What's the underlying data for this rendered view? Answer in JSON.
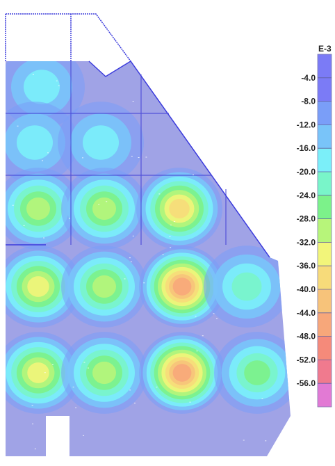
{
  "legend": {
    "unit": "E-3",
    "ticks": [
      "-4.0",
      "-8.0",
      "-12.0",
      "-16.0",
      "-20.0",
      "-24.0",
      "-28.0",
      "-32.0",
      "-36.0",
      "-40.0",
      "-44.0",
      "-48.0",
      "-52.0",
      "-56.0"
    ],
    "colors": [
      "#7b7bf6",
      "#7a9ef8",
      "#79c4f9",
      "#7beff9",
      "#79f5c9",
      "#7cf28a",
      "#b7f57a",
      "#f2f57a",
      "#f7db7a",
      "#f7c37a",
      "#f7a77a",
      "#f58a7a",
      "#f07a8e",
      "#e27ad4"
    ]
  },
  "contour": {
    "base_color": "#a0a3e6",
    "edge_color": "#3b3bdc",
    "peaks": [
      {
        "center": [
          60,
          125
        ],
        "min_value": -12
      },
      {
        "center": [
          50,
          205
        ],
        "min_value": -12
      },
      {
        "center": [
          145,
          205
        ],
        "min_value": -12
      },
      {
        "center": [
          55,
          300
        ],
        "min_value": -22
      },
      {
        "center": [
          150,
          300
        ],
        "min_value": -22
      },
      {
        "center": [
          258,
          300
        ],
        "min_value": -30
      },
      {
        "center": [
          55,
          412
        ],
        "min_value": -26
      },
      {
        "center": [
          150,
          412
        ],
        "min_value": -22
      },
      {
        "center": [
          262,
          412
        ],
        "min_value": -40
      },
      {
        "center": [
          355,
          412
        ],
        "min_value": -16
      },
      {
        "center": [
          55,
          536
        ],
        "min_value": -26
      },
      {
        "center": [
          150,
          536
        ],
        "min_value": -22
      },
      {
        "center": [
          262,
          536
        ],
        "min_value": -40
      },
      {
        "center": [
          370,
          536
        ],
        "min_value": -18
      }
    ]
  }
}
